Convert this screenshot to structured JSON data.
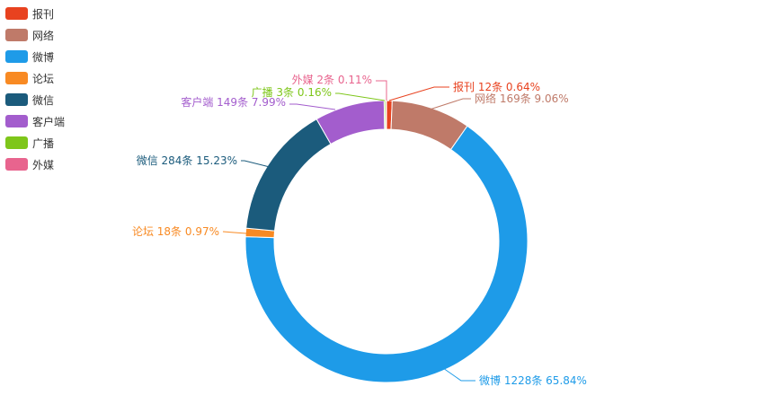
{
  "chart_data": {
    "type": "pie",
    "variant": "donut",
    "title": "",
    "legend_position": "top-left",
    "unit": "条",
    "slices": [
      {
        "name": "报刊",
        "value": 12,
        "percent": "0.64%",
        "color": "#e8421f"
      },
      {
        "name": "网络",
        "value": 169,
        "percent": "9.06%",
        "color": "#bf7a69"
      },
      {
        "name": "微博",
        "value": 1228,
        "percent": "65.84%",
        "color": "#1e9be8"
      },
      {
        "name": "论坛",
        "value": 18,
        "percent": "0.97%",
        "color": "#f88a23"
      },
      {
        "name": "微信",
        "value": 284,
        "percent": "15.23%",
        "color": "#1b5b7c"
      },
      {
        "name": "客户端",
        "value": 149,
        "percent": "7.99%",
        "color": "#a35dcd"
      },
      {
        "name": "广播",
        "value": 3,
        "percent": "0.16%",
        "color": "#7ec61a"
      },
      {
        "name": "外媒",
        "value": 2,
        "percent": "0.11%",
        "color": "#e8648e"
      }
    ]
  }
}
